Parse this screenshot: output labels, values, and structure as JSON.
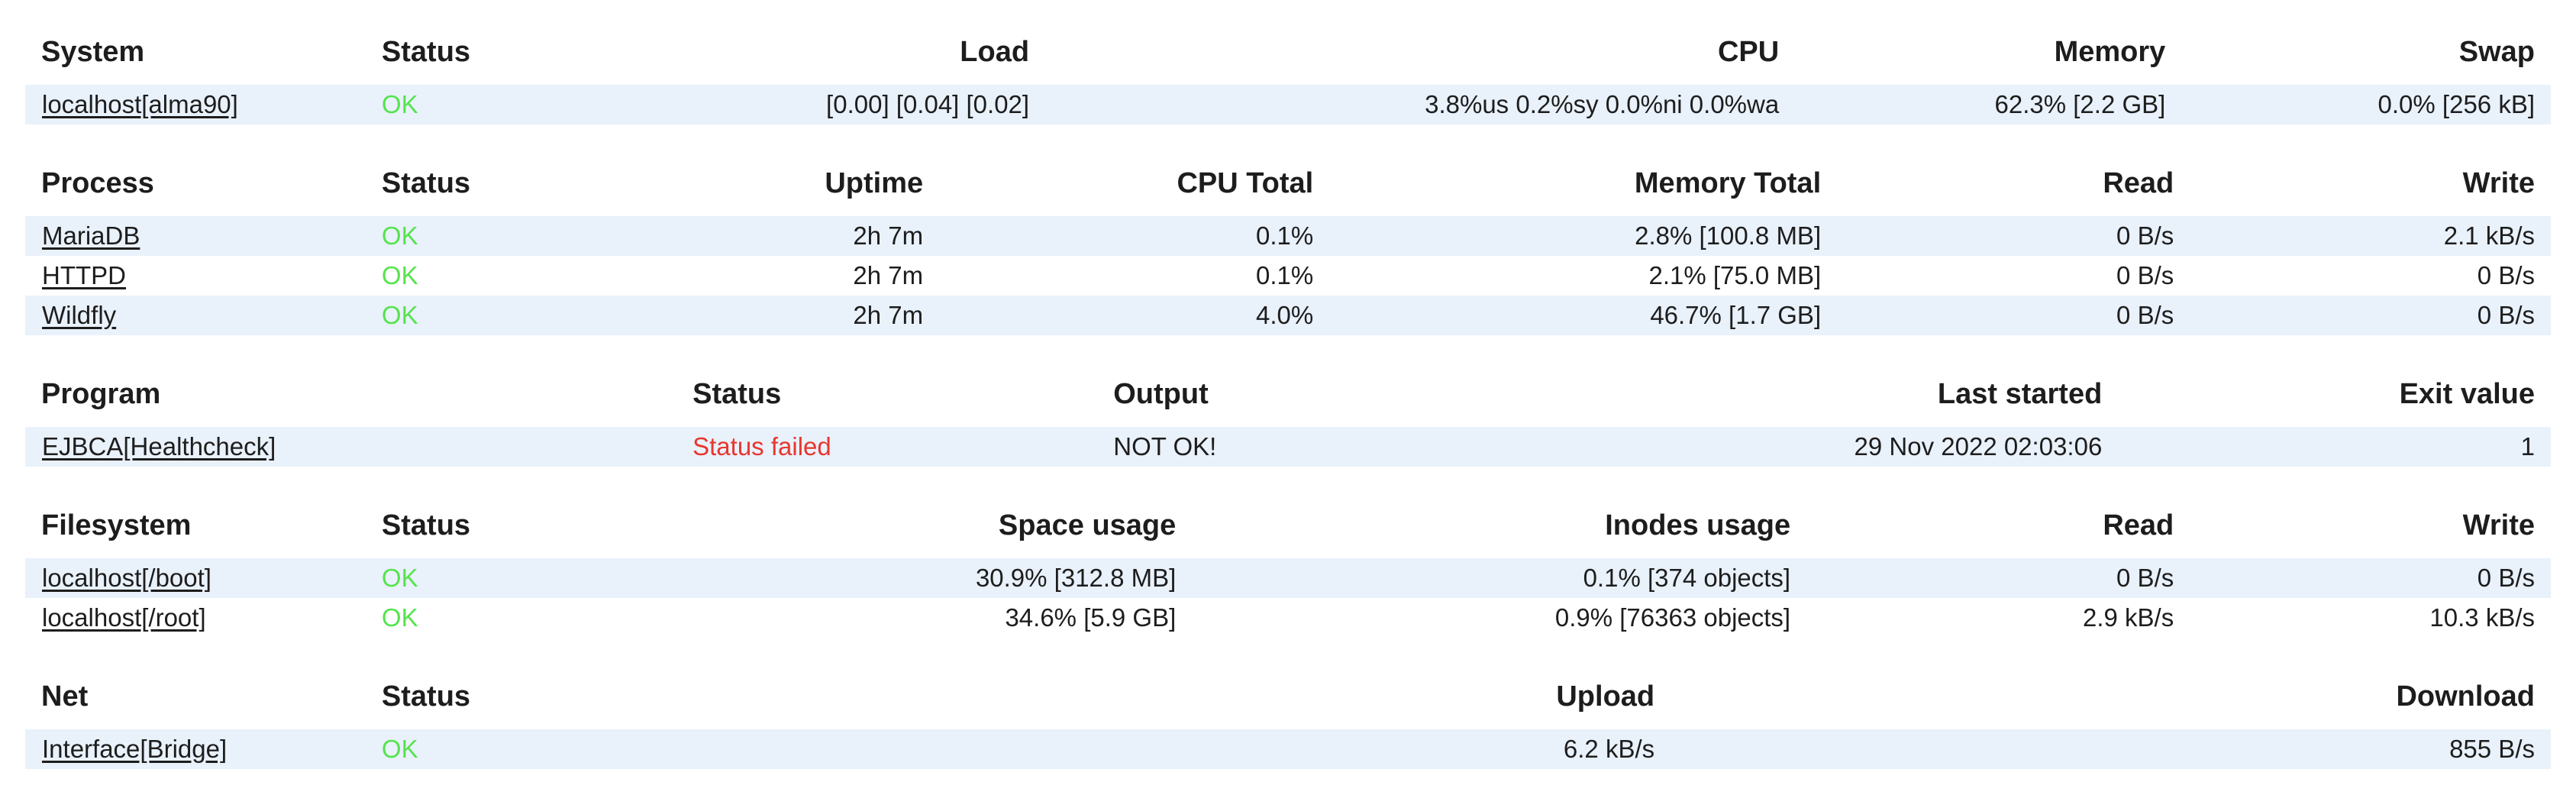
{
  "colors": {
    "page_background": "#ffffff",
    "row_band": "#e9f1fb",
    "text": "#1d1d1d",
    "status_ok_green": "#55e44c",
    "status_failed_red": "#e8362d"
  },
  "tables": [
    {
      "id": "system",
      "columns": [
        "System",
        "Status",
        "Load",
        "CPU",
        "Memory",
        "Swap"
      ],
      "rows": [
        {
          "name": "localhost[alma90]",
          "status": "OK",
          "status_state": "ok",
          "values": [
            "[0.00] [0.04] [0.02]",
            "3.8%us 0.2%sy 0.0%ni 0.0%wa",
            "62.3% [2.2 GB]",
            "0.0% [256 kB]"
          ]
        }
      ]
    },
    {
      "id": "process",
      "columns": [
        "Process",
        "Status",
        "Uptime",
        "CPU Total",
        "Memory Total",
        "Read",
        "Write"
      ],
      "rows": [
        {
          "name": "MariaDB",
          "status": "OK",
          "status_state": "ok",
          "values": [
            "2h 7m",
            "0.1%",
            "2.8% [100.8 MB]",
            "0 B/s",
            "2.1 kB/s"
          ]
        },
        {
          "name": "HTTPD",
          "status": "OK",
          "status_state": "ok",
          "values": [
            "2h 7m",
            "0.1%",
            "2.1% [75.0 MB]",
            "0 B/s",
            "0 B/s"
          ]
        },
        {
          "name": "Wildfly",
          "status": "OK",
          "status_state": "ok",
          "values": [
            "2h 7m",
            "4.0%",
            "46.7% [1.7 GB]",
            "0 B/s",
            "0 B/s"
          ]
        }
      ]
    },
    {
      "id": "program",
      "columns": [
        "Program",
        "Status",
        "Output",
        "Last started",
        "Exit value"
      ],
      "rows": [
        {
          "name": "EJBCA[Healthcheck]",
          "status": "Status failed",
          "status_state": "failed",
          "values": [
            "NOT OK!",
            "29 Nov 2022 02:03:06",
            "1"
          ]
        }
      ]
    },
    {
      "id": "filesystem",
      "columns": [
        "Filesystem",
        "Status",
        "Space usage",
        "Inodes usage",
        "Read",
        "Write"
      ],
      "rows": [
        {
          "name": "localhost[/boot]",
          "status": "OK",
          "status_state": "ok",
          "values": [
            "30.9% [312.8 MB]",
            "0.1% [374 objects]",
            "0 B/s",
            "0 B/s"
          ]
        },
        {
          "name": "localhost[/root]",
          "status": "OK",
          "status_state": "ok",
          "values": [
            "34.6% [5.9 GB]",
            "0.9% [76363 objects]",
            "2.9 kB/s",
            "10.3 kB/s"
          ]
        }
      ]
    },
    {
      "id": "net",
      "columns": [
        "Net",
        "Status",
        "Upload",
        "Download"
      ],
      "rows": [
        {
          "name": "Interface[Bridge]",
          "status": "OK",
          "status_state": "ok",
          "values": [
            "6.2 kB/s",
            "855 B/s"
          ]
        }
      ]
    }
  ]
}
